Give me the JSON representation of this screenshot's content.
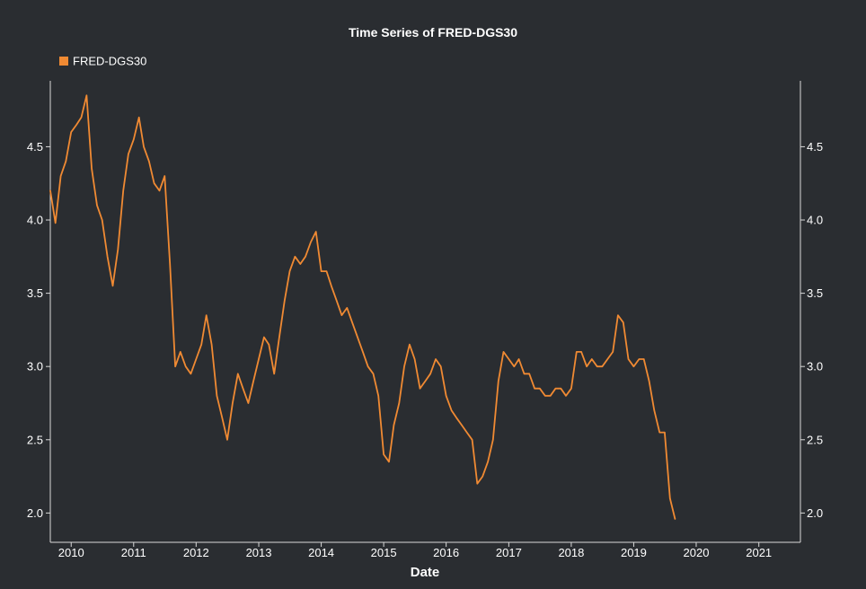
{
  "chart_data": {
    "type": "line",
    "title": "Time Series of FRED-DGS30",
    "xlabel": "Date",
    "ylabel": "",
    "legend": {
      "position": "top-left",
      "entries": [
        "FRED-DGS30"
      ]
    },
    "grid": false,
    "xlim": [
      "2009-09-01",
      "2021-09-01"
    ],
    "ylim": [
      1.8,
      4.95
    ],
    "x_ticks": [
      "2010",
      "2011",
      "2012",
      "2013",
      "2014",
      "2015",
      "2016",
      "2017",
      "2018",
      "2019",
      "2020",
      "2021"
    ],
    "y_ticks": [
      "2.0",
      "2.5",
      "3.0",
      "3.5",
      "4.0",
      "4.5"
    ],
    "colors": {
      "series": "#f08a33",
      "background": "#2a2d31",
      "text": "#ffffff",
      "axis": "#d9d9d9"
    },
    "series": [
      {
        "name": "FRED-DGS30",
        "x": [
          "2009-09-01",
          "2009-10-01",
          "2009-11-01",
          "2009-12-01",
          "2010-01-01",
          "2010-02-01",
          "2010-03-01",
          "2010-04-01",
          "2010-05-01",
          "2010-06-01",
          "2010-07-01",
          "2010-08-01",
          "2010-09-01",
          "2010-10-01",
          "2010-11-01",
          "2010-12-01",
          "2011-01-01",
          "2011-02-01",
          "2011-03-01",
          "2011-04-01",
          "2011-05-01",
          "2011-06-01",
          "2011-07-01",
          "2011-08-01",
          "2011-09-01",
          "2011-10-01",
          "2011-11-01",
          "2011-12-01",
          "2012-01-01",
          "2012-02-01",
          "2012-03-01",
          "2012-04-01",
          "2012-05-01",
          "2012-06-01",
          "2012-07-01",
          "2012-08-01",
          "2012-09-01",
          "2012-10-01",
          "2012-11-01",
          "2012-12-01",
          "2013-01-01",
          "2013-02-01",
          "2013-03-01",
          "2013-04-01",
          "2013-05-01",
          "2013-06-01",
          "2013-07-01",
          "2013-08-01",
          "2013-09-01",
          "2013-10-01",
          "2013-11-01",
          "2013-12-01",
          "2014-01-01",
          "2014-02-01",
          "2014-03-01",
          "2014-04-01",
          "2014-05-01",
          "2014-06-01",
          "2014-07-01",
          "2014-08-01",
          "2014-09-01",
          "2014-10-01",
          "2014-11-01",
          "2014-12-01",
          "2015-01-01",
          "2015-02-01",
          "2015-03-01",
          "2015-04-01",
          "2015-05-01",
          "2015-06-01",
          "2015-07-01",
          "2015-08-01",
          "2015-09-01",
          "2015-10-01",
          "2015-11-01",
          "2015-12-01",
          "2016-01-01",
          "2016-02-01",
          "2016-03-01",
          "2016-04-01",
          "2016-05-01",
          "2016-06-01",
          "2016-07-01",
          "2016-08-01",
          "2016-09-01",
          "2016-10-01",
          "2016-11-01",
          "2016-12-01",
          "2017-01-01",
          "2017-02-01",
          "2017-03-01",
          "2017-04-01",
          "2017-05-01",
          "2017-06-01",
          "2017-07-01",
          "2017-08-01",
          "2017-09-01",
          "2017-10-01",
          "2017-11-01",
          "2017-12-01",
          "2018-01-01",
          "2018-02-01",
          "2018-03-01",
          "2018-04-01",
          "2018-05-01",
          "2018-06-01",
          "2018-07-01",
          "2018-08-01",
          "2018-09-01",
          "2018-10-01",
          "2018-11-01",
          "2018-12-01",
          "2019-01-01",
          "2019-02-01",
          "2019-03-01",
          "2019-04-01",
          "2019-05-01",
          "2019-06-01",
          "2019-07-01",
          "2019-08-01",
          "2019-08-30"
        ],
        "values": [
          4.2,
          3.98,
          4.3,
          4.4,
          4.6,
          4.65,
          4.7,
          4.85,
          4.35,
          4.1,
          4.0,
          3.75,
          3.55,
          3.8,
          4.2,
          4.45,
          4.55,
          4.7,
          4.5,
          4.4,
          4.25,
          4.2,
          4.3,
          3.7,
          3.0,
          3.1,
          3.0,
          2.95,
          3.05,
          3.15,
          3.35,
          3.15,
          2.8,
          2.65,
          2.5,
          2.75,
          2.95,
          2.85,
          2.75,
          2.9,
          3.05,
          3.2,
          3.15,
          2.95,
          3.2,
          3.45,
          3.65,
          3.75,
          3.7,
          3.75,
          3.85,
          3.92,
          3.65,
          3.65,
          3.55,
          3.45,
          3.35,
          3.4,
          3.3,
          3.2,
          3.1,
          3.0,
          2.95,
          2.8,
          2.4,
          2.35,
          2.6,
          2.75,
          3.0,
          3.15,
          3.05,
          2.85,
          2.9,
          2.95,
          3.05,
          3.0,
          2.8,
          2.7,
          2.65,
          2.6,
          2.55,
          2.5,
          2.2,
          2.25,
          2.35,
          2.5,
          2.9,
          3.1,
          3.05,
          3.0,
          3.05,
          2.95,
          2.95,
          2.85,
          2.85,
          2.8,
          2.8,
          2.85,
          2.85,
          2.8,
          2.85,
          3.1,
          3.1,
          3.0,
          3.05,
          3.0,
          3.0,
          3.05,
          3.1,
          3.35,
          3.3,
          3.05,
          3.0,
          3.05,
          3.05,
          2.9,
          2.7,
          2.55,
          2.55,
          2.1,
          1.96
        ]
      }
    ]
  }
}
